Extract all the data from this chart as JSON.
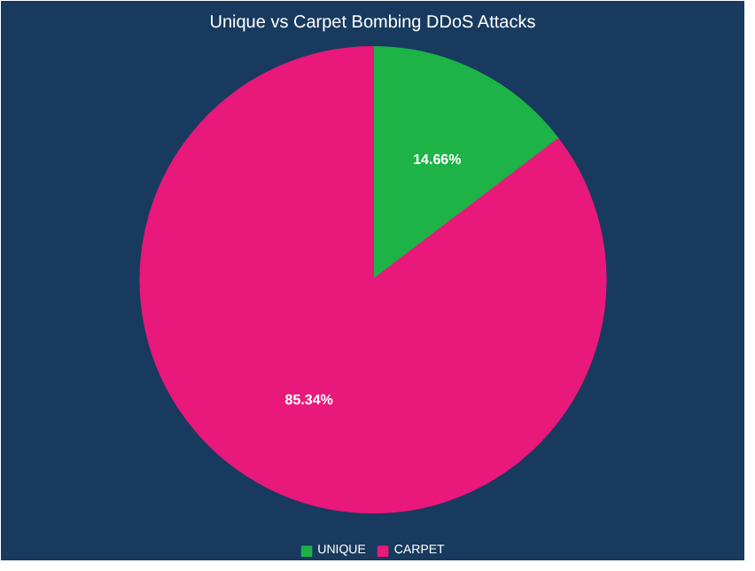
{
  "chart_data": {
    "type": "pie",
    "title": "Unique vs Carpet Bombing DDoS Attacks",
    "categories": [
      "UNIQUE",
      "CARPET"
    ],
    "values": [
      14.66,
      85.34
    ],
    "colors": [
      "#1db347",
      "#e8197a"
    ],
    "value_labels": [
      "14.66%",
      "85.34%"
    ],
    "legend": "bottom"
  }
}
